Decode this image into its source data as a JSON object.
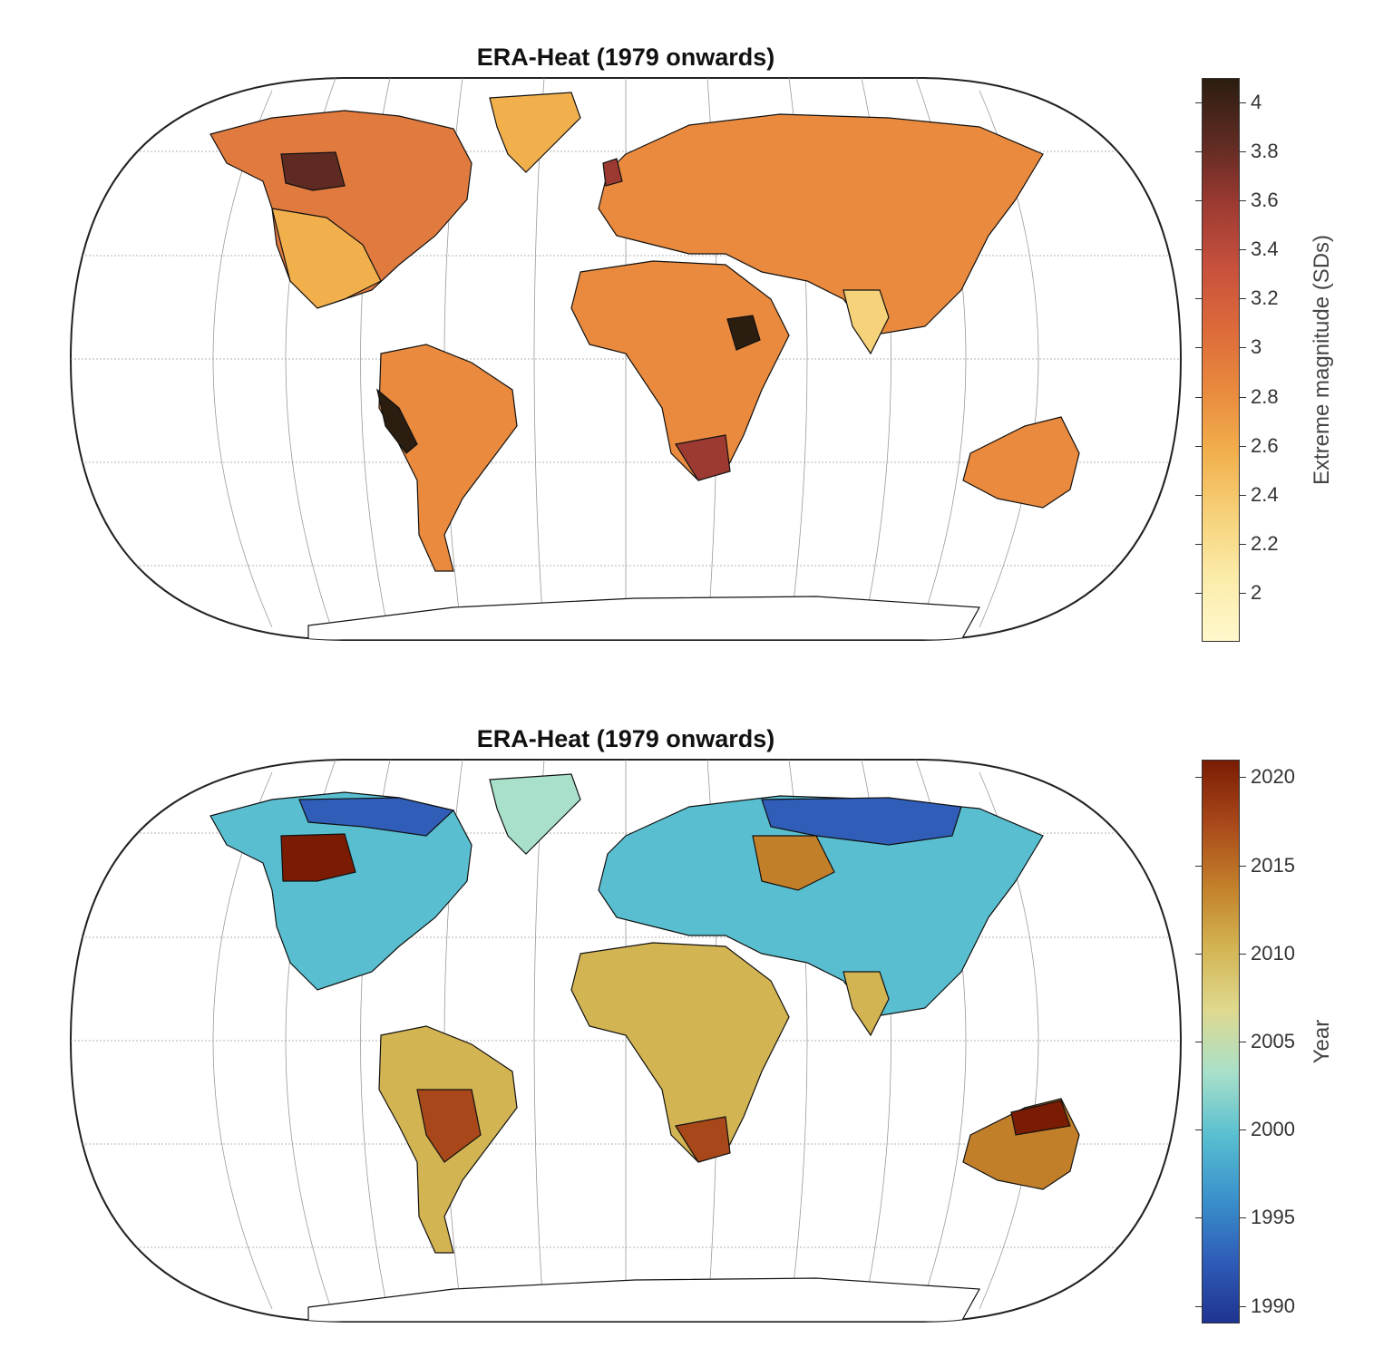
{
  "panels": [
    {
      "title": "ERA-Heat (1979 onwards)",
      "colorbar": {
        "label": "Extreme magnitude (SDs)",
        "min": 1.8,
        "max": 4.1,
        "ticks": [
          "2",
          "2.2",
          "2.4",
          "2.6",
          "2.8",
          "3",
          "3.2",
          "3.4",
          "3.6",
          "3.8",
          "4"
        ],
        "tick_values": [
          2,
          2.2,
          2.4,
          2.6,
          2.8,
          3,
          3.2,
          3.4,
          3.6,
          3.8,
          4
        ],
        "colors": [
          "#2b1d10",
          "#5e2a22",
          "#9c3a32",
          "#c7503d",
          "#dc6a3a",
          "#e98a3e",
          "#f2b04d",
          "#f6d27a",
          "#fbecaa",
          "#fff8cc"
        ]
      }
    },
    {
      "title": "ERA-Heat (1979 onwards)",
      "colorbar": {
        "label": "Year",
        "min": 1989,
        "max": 2021,
        "ticks": [
          "1990",
          "1995",
          "2000",
          "2005",
          "2010",
          "2015",
          "2020"
        ],
        "tick_values": [
          1990,
          1995,
          2000,
          2005,
          2010,
          2015,
          2020
        ],
        "colors": [
          "#7a1c03",
          "#a8481a",
          "#c27f2a",
          "#d3b453",
          "#dfd98f",
          "#a8e0c9",
          "#59bfd0",
          "#3a92cc",
          "#2f5db8",
          "#1f3490"
        ]
      }
    }
  ]
}
